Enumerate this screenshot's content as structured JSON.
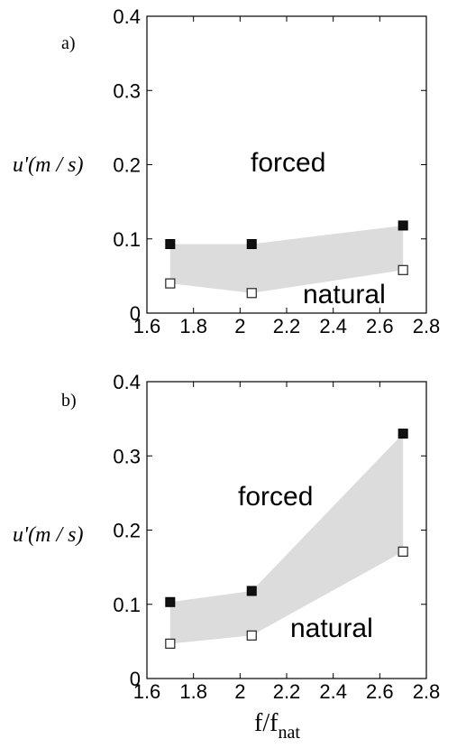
{
  "chart_data": [
    {
      "type": "scatter",
      "panel_label": "a)",
      "title": "",
      "ylabel": "u'(m / s)",
      "xlabel": "",
      "xlim": [
        1.6,
        2.8
      ],
      "ylim": [
        0,
        0.4
      ],
      "xticks": [
        "1.6",
        "1.8",
        "2",
        "2.2",
        "2.4",
        "2.6",
        "2.8"
      ],
      "yticks": [
        "0",
        "0.1",
        "0.2",
        "0.3",
        "0.4"
      ],
      "annotations": [
        "forced",
        "natural"
      ],
      "band_color": "#dcdcdc",
      "series": [
        {
          "name": "forced",
          "marker": "filled-square",
          "x": [
            1.7,
            2.05,
            2.7
          ],
          "values": [
            0.093,
            0.093,
            0.118
          ]
        },
        {
          "name": "natural",
          "marker": "open-square",
          "x": [
            1.7,
            2.05,
            2.7
          ],
          "values": [
            0.04,
            0.027,
            0.058
          ]
        }
      ]
    },
    {
      "type": "scatter",
      "panel_label": "b)",
      "title": "",
      "ylabel": "u'(m / s)",
      "xlabel": "f/f_nat",
      "xlim": [
        1.6,
        2.8
      ],
      "ylim": [
        0,
        0.4
      ],
      "xticks": [
        "1.6",
        "1.8",
        "2",
        "2.2",
        "2.4",
        "2.6",
        "2.8"
      ],
      "yticks": [
        "0",
        "0.1",
        "0.2",
        "0.3",
        "0.4"
      ],
      "annotations": [
        "forced",
        "natural"
      ],
      "band_color": "#dcdcdc",
      "series": [
        {
          "name": "forced",
          "marker": "filled-square",
          "x": [
            1.7,
            2.05,
            2.7
          ],
          "values": [
            0.103,
            0.118,
            0.33
          ]
        },
        {
          "name": "natural",
          "marker": "open-square",
          "x": [
            1.7,
            2.05,
            2.7
          ],
          "values": [
            0.047,
            0.058,
            0.171
          ]
        }
      ]
    }
  ]
}
